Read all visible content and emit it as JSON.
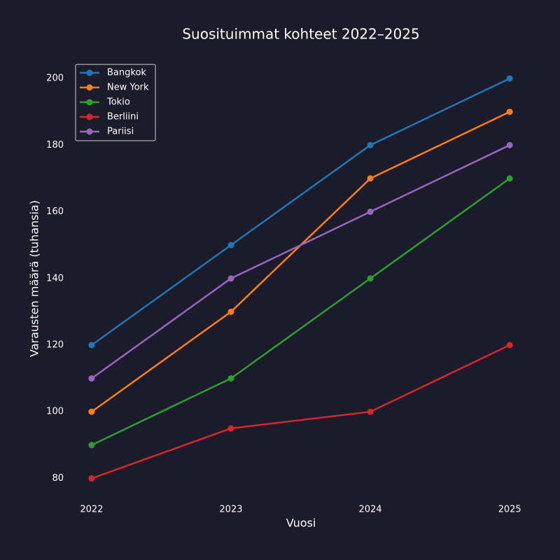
{
  "chart_data": {
    "type": "line",
    "title": "Suosituimmat kohteet 2022–2025",
    "xlabel": "Vuosi",
    "ylabel": "Varausten määrä (tuhansia)",
    "x": [
      2022,
      2023,
      2024,
      2025
    ],
    "series": [
      {
        "name": "Bangkok",
        "color": "#1f77b4",
        "values": [
          120,
          150,
          180,
          200
        ]
      },
      {
        "name": "New York",
        "color": "#ff7f0e",
        "values": [
          100,
          130,
          170,
          190
        ]
      },
      {
        "name": "Tokio",
        "color": "#2ca02c",
        "values": [
          90,
          110,
          140,
          170
        ]
      },
      {
        "name": "Berliini",
        "color": "#d62728",
        "values": [
          80,
          95,
          100,
          120
        ]
      },
      {
        "name": "Pariisi",
        "color": "#9467bd",
        "values": [
          110,
          140,
          160,
          180
        ]
      }
    ],
    "xlim": [
      2021.85,
      2025.15
    ],
    "ylim": [
      74,
      208
    ],
    "xticks": [
      2022,
      2023,
      2024,
      2025
    ],
    "yticks": [
      80,
      100,
      120,
      140,
      160,
      180,
      200
    ],
    "grid": false,
    "legend": "upper-left"
  }
}
